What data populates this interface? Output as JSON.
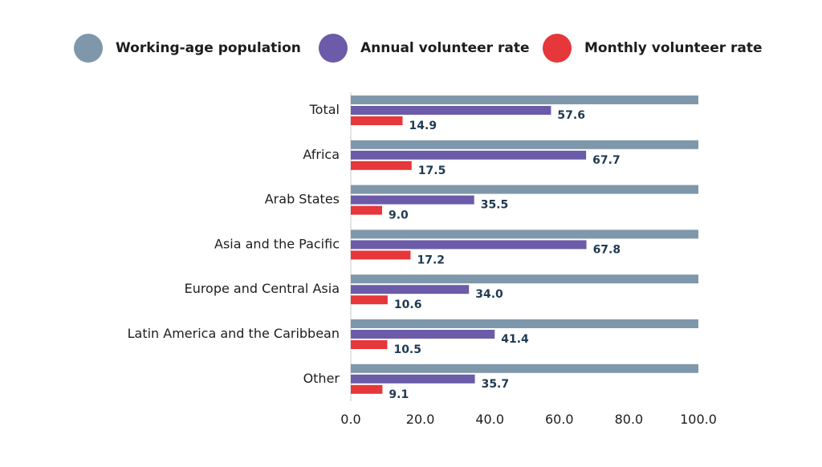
{
  "chart_data": {
    "type": "bar",
    "orientation": "horizontal",
    "title": "",
    "xlabel": "",
    "ylabel": "",
    "xlim": [
      0,
      100
    ],
    "xticks": [
      "0.0",
      "20.0",
      "40.0",
      "60.0",
      "80.0",
      "100.0"
    ],
    "tick_values": [
      0,
      20,
      40,
      60,
      80,
      100
    ],
    "grid": false,
    "legend_position": "top",
    "categories": [
      "Total",
      "Africa",
      "Arab States",
      "Asia and the Pacific",
      "Europe and Central Asia",
      "Latin America and the Caribbean",
      "Other"
    ],
    "series": [
      {
        "name": "Working-age population",
        "color": "#7f97ab",
        "values": [
          100,
          100,
          100,
          100,
          100,
          100,
          100
        ],
        "labels": [
          "",
          "",
          "",
          "",
          "",
          "",
          ""
        ]
      },
      {
        "name": "Annual volunteer rate",
        "color": "#6b5ba8",
        "values": [
          57.6,
          67.7,
          35.5,
          67.8,
          34.0,
          41.4,
          35.7
        ],
        "labels": [
          "57.6",
          "67.7",
          "35.5",
          "67.8",
          "34.0",
          "41.4",
          "35.7"
        ]
      },
      {
        "name": "Monthly volunteer rate",
        "color": "#e6373b",
        "values": [
          14.9,
          17.5,
          9.0,
          17.2,
          10.6,
          10.5,
          9.1
        ],
        "labels": [
          "14.9",
          "17.5",
          "9.0",
          "17.2",
          "10.6",
          "10.5",
          "9.1"
        ]
      }
    ]
  }
}
